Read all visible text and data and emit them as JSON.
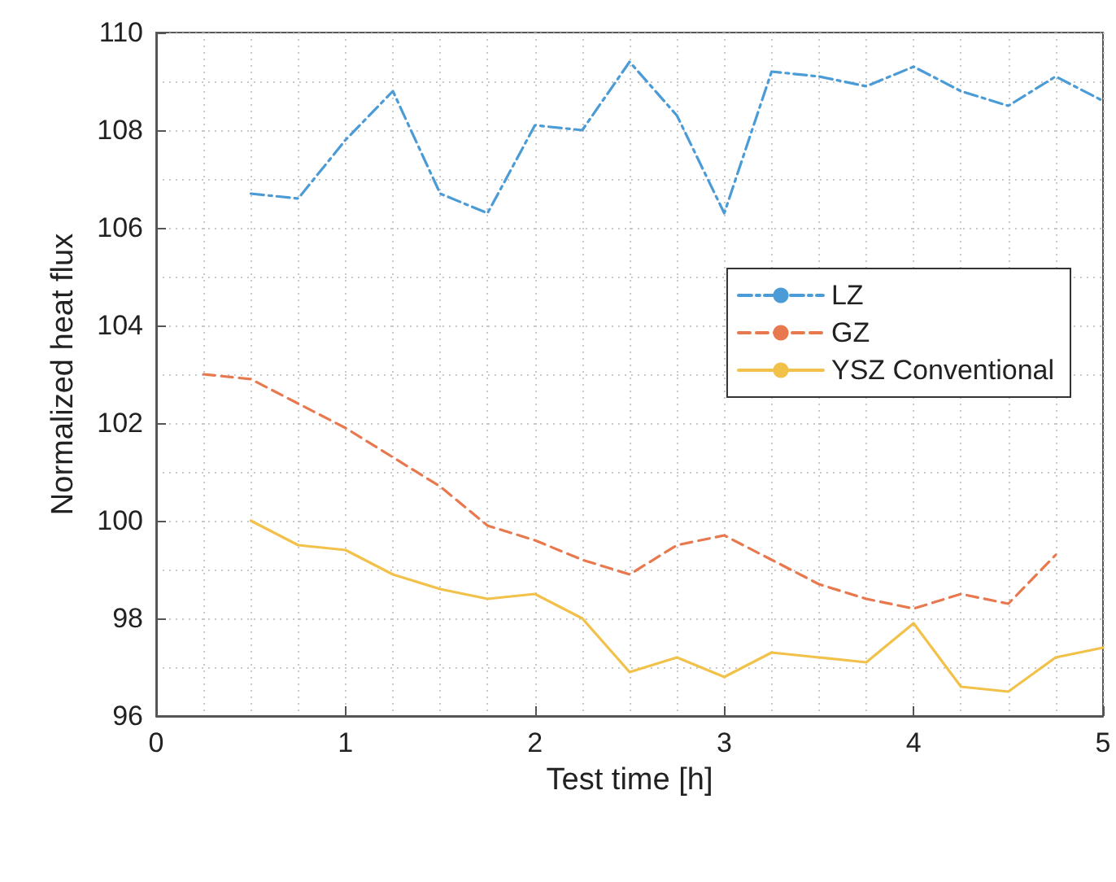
{
  "chart_data": {
    "type": "line",
    "xlabel": "Test time [h]",
    "ylabel": "Normalized heat flux",
    "xlim": [
      0,
      5
    ],
    "xticks": [
      0,
      1,
      2,
      3,
      4,
      5
    ],
    "ylim": [
      96,
      110
    ],
    "yticks": [
      96,
      98,
      100,
      102,
      104,
      106,
      108,
      110
    ],
    "grid": true,
    "legend": "right",
    "marker": "none",
    "series": [
      {
        "name": "LZ",
        "color": "#4a9bd6",
        "line_style": "dashdot",
        "x": [
          0.5,
          0.75,
          1,
          1.25,
          1.5,
          1.75,
          2,
          2.25,
          2.5,
          2.75,
          3,
          3.25,
          3.5,
          3.75,
          4,
          4.25,
          4.5,
          4.75,
          5
        ],
        "values": [
          106.7,
          106.6,
          107.8,
          108.8,
          106.7,
          106.3,
          108.1,
          108.0,
          109.4,
          108.3,
          106.3,
          109.2,
          109.1,
          108.9,
          109.3,
          108.8,
          108.5,
          109.1,
          108.6
        ]
      },
      {
        "name": "GZ",
        "color": "#e8784e",
        "line_style": "dashed",
        "x": [
          0.25,
          0.5,
          0.75,
          1,
          1.25,
          1.5,
          1.75,
          2,
          2.25,
          2.5,
          2.75,
          3,
          3.25,
          3.5,
          3.75,
          4,
          4.25,
          4.5,
          4.75
        ],
        "values": [
          103.0,
          102.9,
          102.4,
          101.9,
          101.3,
          100.7,
          99.9,
          99.6,
          99.2,
          98.9,
          99.5,
          99.7,
          99.2,
          98.7,
          98.4,
          98.2,
          98.5,
          98.3,
          99.3
        ]
      },
      {
        "name": "YSZ Conventional",
        "color": "#f2c14a",
        "line_style": "solid",
        "x": [
          0.5,
          0.75,
          1,
          1.25,
          1.5,
          1.75,
          2,
          2.25,
          2.5,
          2.75,
          3,
          3.25,
          3.5,
          3.75,
          4,
          4.25,
          4.5,
          4.75,
          5
        ],
        "values": [
          100.0,
          99.5,
          99.4,
          98.9,
          98.6,
          98.4,
          98.5,
          98.0,
          96.9,
          97.2,
          96.8,
          97.3,
          97.2,
          97.1,
          97.9,
          96.6,
          96.5,
          97.2,
          97.4
        ]
      }
    ]
  }
}
